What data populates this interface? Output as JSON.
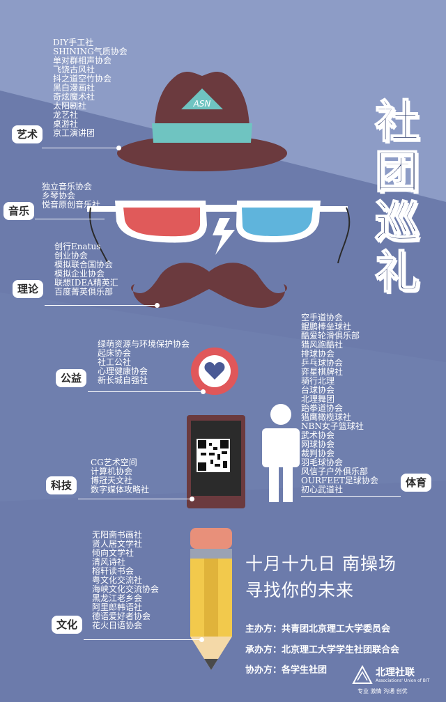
{
  "title_chars": [
    "社",
    "团",
    "巡",
    "礼"
  ],
  "categories": {
    "art": {
      "label": "艺术",
      "items": [
        "DIY手工社",
        "SHINING气质协会",
        "单对群相声协会",
        "飞饶古风社",
        "抖之道空竹协会",
        "黑白漫画社",
        "奇炫魔术社",
        "太阳剧社",
        "龙艺社",
        "桌游社",
        "京工演讲团"
      ]
    },
    "music": {
      "label": "音乐",
      "items": [
        "独立音乐协会",
        "乡琴协会",
        "悦音原创音乐社"
      ]
    },
    "theory": {
      "label": "理论",
      "items": [
        "创行Enatus",
        "创业协会",
        "模拟联合国协会",
        "模拟企业协会",
        "联想IDEA精英汇",
        "百度菁英俱乐部"
      ]
    },
    "charity": {
      "label": "公益",
      "items": [
        "绿萌资源与环境保护协会",
        "起床协会",
        "社工公社",
        "心理健康协会",
        "新长城自强社"
      ]
    },
    "tech": {
      "label": "科技",
      "items": [
        "CG艺术空间",
        "计算机协会",
        "博冠天文社",
        "数字媒体攻略社"
      ]
    },
    "culture": {
      "label": "文化",
      "items": [
        "无阳斋书画社",
        "贤人居文学社",
        "倾向文学社",
        "清风诗社",
        "榕轩读书会",
        "粤文化交流社",
        "海峡文化交流协会",
        "黑龙江老乡会",
        "阿里郎韩语社",
        "德语爱好者协会",
        "花火日语协会"
      ]
    },
    "sports": {
      "label": "体育",
      "items": [
        "空手道协会",
        "鲲鹏棒垒球社",
        "酷爱轮滑俱乐部",
        "猎风跑酷社",
        "排球协会",
        "乒乓球协会",
        "弈星棋牌社",
        "骑行北理",
        "台球协会",
        "北理舞团",
        "跆拳道协会",
        "猎鹰橄榄球社",
        "NBN女子篮球社",
        "武术协会",
        "网球协会",
        "裁判协会",
        "羽毛球协会",
        "风信子户外俱乐部",
        "OURFEET足球协会",
        "初心武道社"
      ]
    }
  },
  "event": {
    "line1": "十月十九日  南操场",
    "line2": "寻找你的未来"
  },
  "organizers": [
    "主办方：共青团北京理工大学委员会",
    "承办方：北京理工大学学生社团联合会",
    "协办方：各学生社团"
  ],
  "logo": {
    "name": "北理社联",
    "subtitle": "Associations' Union of BIT",
    "slogan": "专业 激情 沟通 创优"
  },
  "colors": {
    "background": "#6f7fae",
    "hat": "#6b3a3e",
    "hat_band": "#6fc4c1",
    "mustache": "#6b3a3e",
    "lens_left": "#e05a5a",
    "lens_right": "#5fb4dc",
    "heart_ring": "#e0575a",
    "pencil_body": "#f2c94c",
    "pencil_eraser": "#e8907a",
    "title_text": "#1f2f63"
  }
}
